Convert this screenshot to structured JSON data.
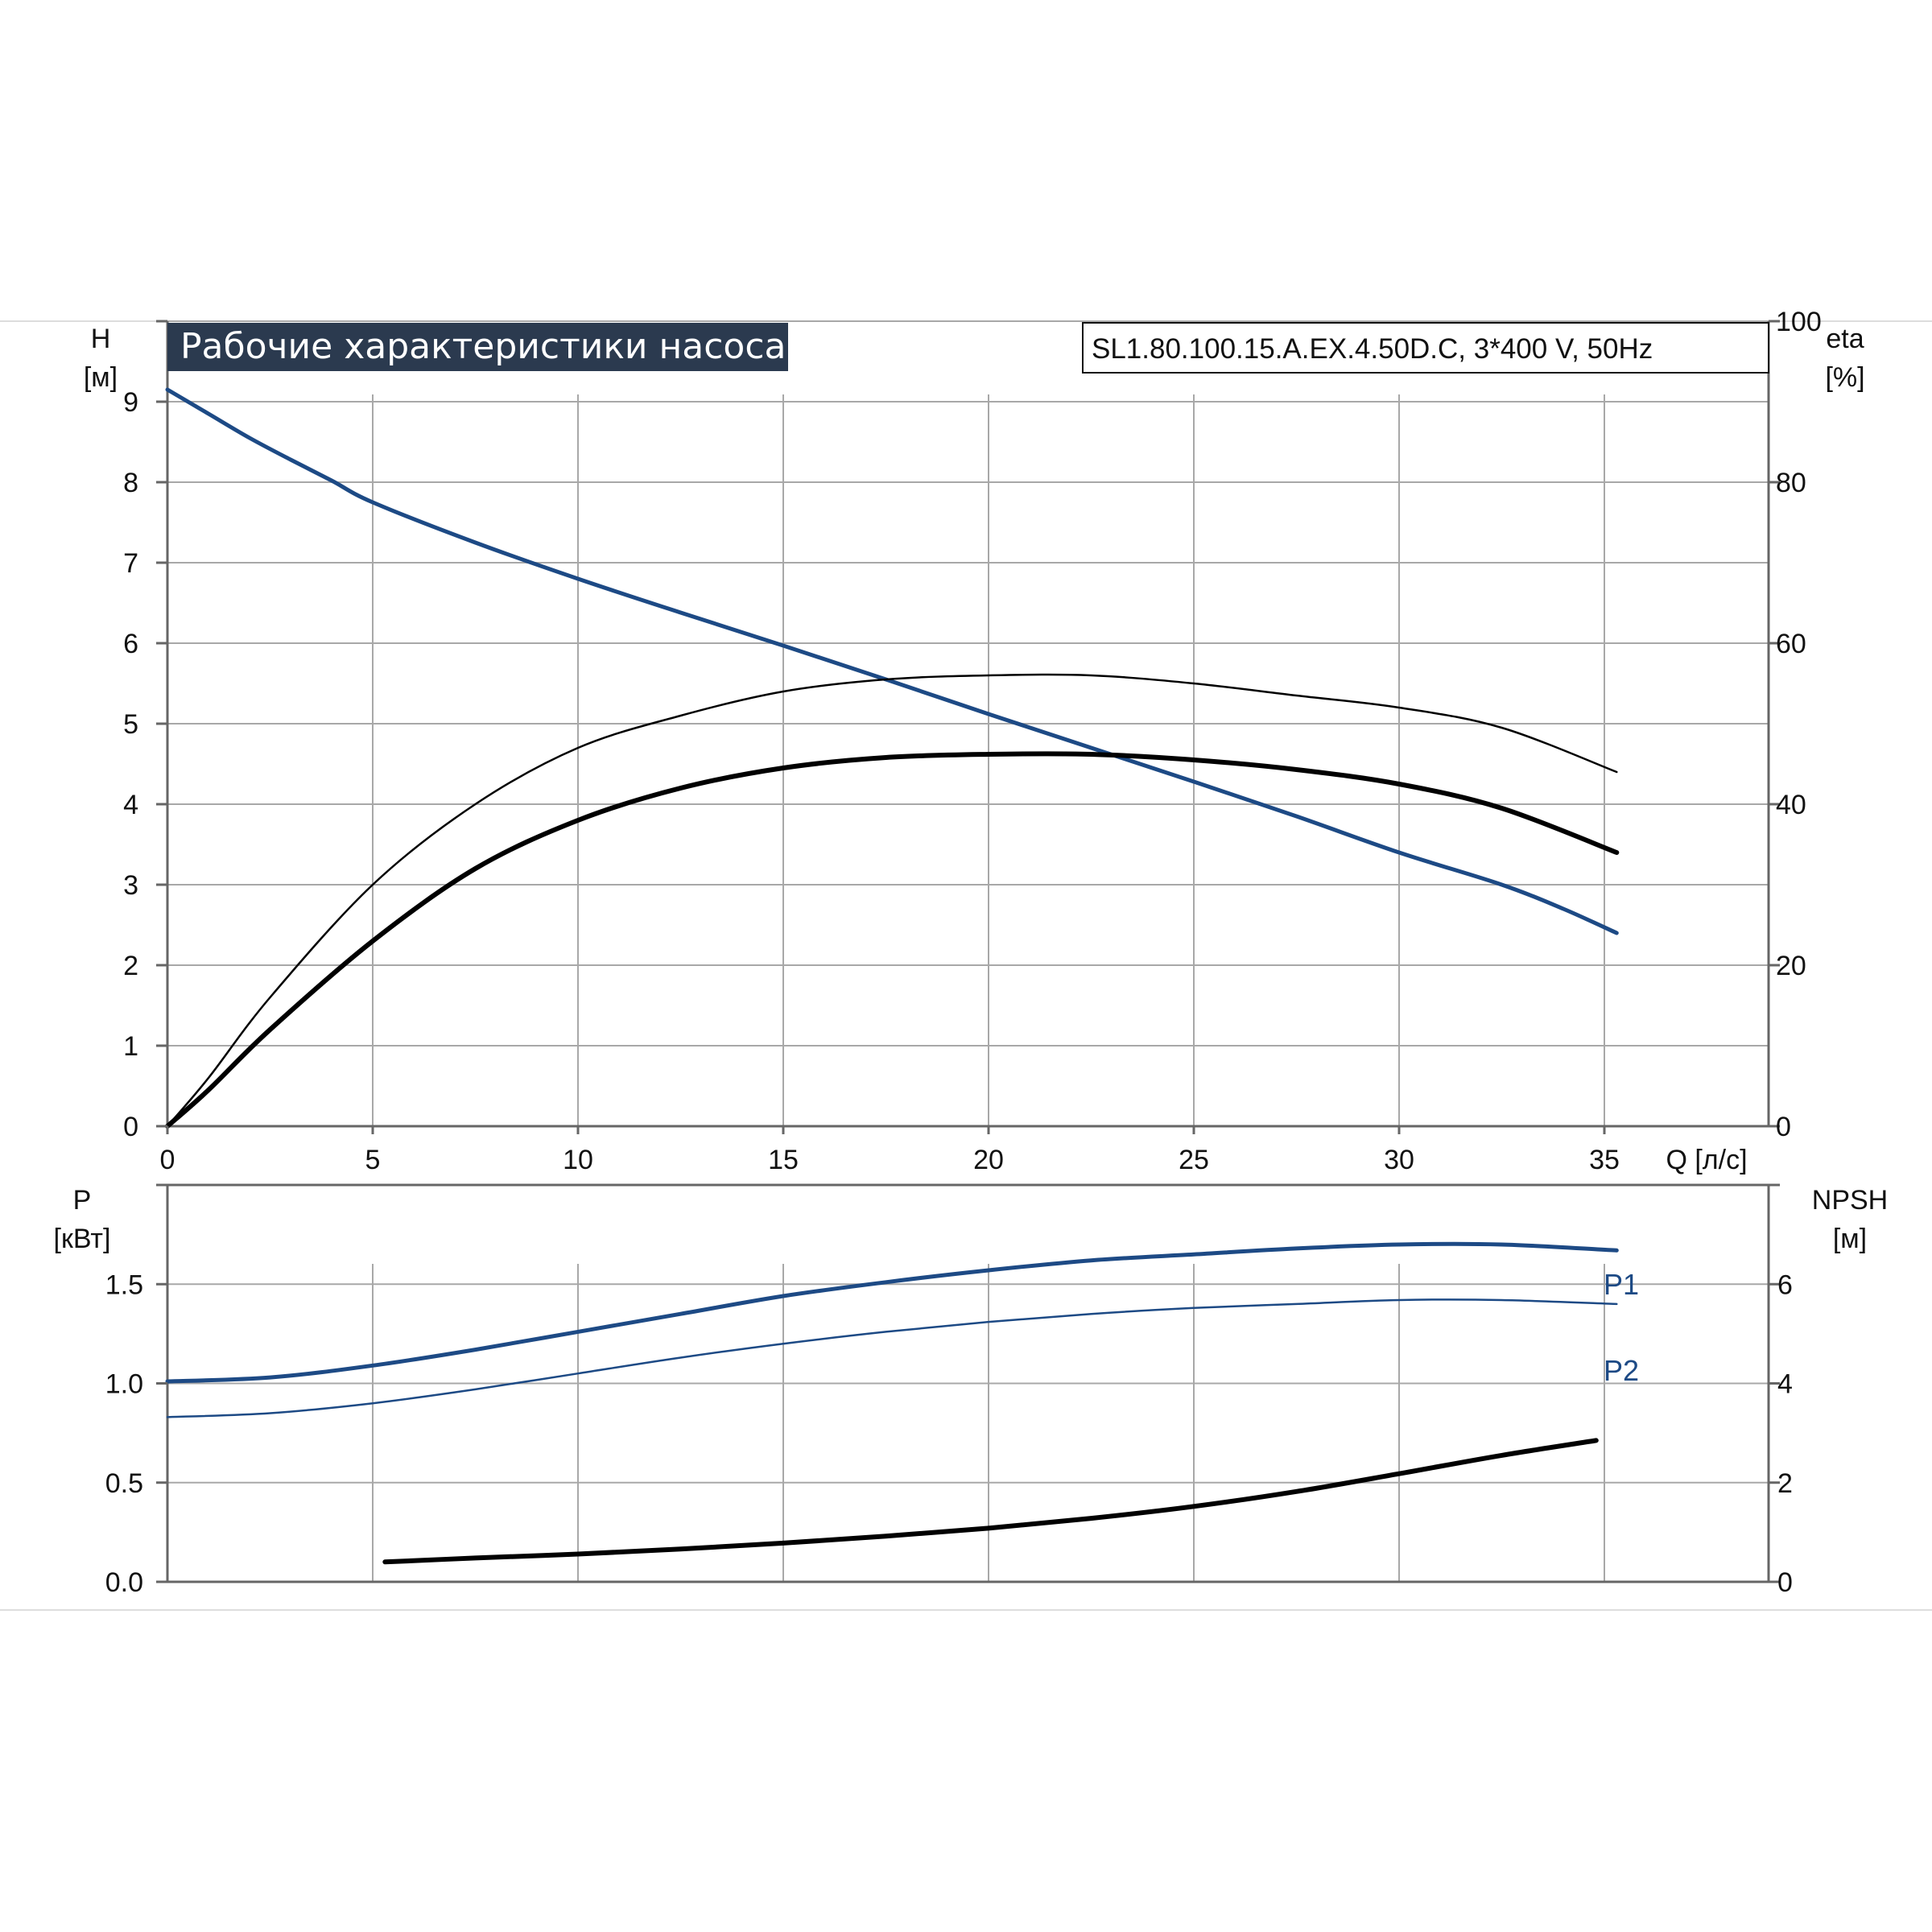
{
  "colors": {
    "curve_blue": "#1d4a85",
    "curve_black": "#000000",
    "grid": "#a8a8a8",
    "axis": "#666666",
    "title_bg": "#2b3a4f"
  },
  "header": {
    "title": "Рабочие характеристики насоса",
    "model": "SL1.80.100.15.A.EX.4.50D.C, 3*400 V, 50Hz"
  },
  "chart_data": [
    {
      "type": "line",
      "title": "Рабочие характеристики насоса",
      "xlabel": "Q [л/с]",
      "ylabel_left": "H",
      "ylabel_left_unit": "[м]",
      "ylabel_right": "eta",
      "ylabel_right_unit": "[%]",
      "xlim": [
        0,
        39
      ],
      "ylim_left": [
        0,
        10
      ],
      "ylim_right": [
        0,
        100
      ],
      "x_ticks": [
        "0",
        "5",
        "10",
        "15",
        "20",
        "25",
        "30",
        "35"
      ],
      "y_ticks_left": [
        "0",
        "1",
        "2",
        "3",
        "4",
        "5",
        "6",
        "7",
        "8",
        "9"
      ],
      "y_ticks_right": [
        "0",
        "20",
        "40",
        "60",
        "80",
        "100"
      ],
      "grid": true,
      "series": [
        {
          "axis": "left",
          "color": "blue",
          "width": 5,
          "points": [
            [
              0,
              9.15
            ],
            [
              1,
              8.85
            ],
            [
              2,
              8.55
            ],
            [
              3,
              8.28
            ],
            [
              4,
              8.02
            ],
            [
              5,
              7.75
            ],
            [
              7.5,
              7.25
            ],
            [
              10,
              6.8
            ],
            [
              12.5,
              6.38
            ],
            [
              15,
              5.97
            ],
            [
              17.5,
              5.55
            ],
            [
              20,
              5.12
            ],
            [
              22.5,
              4.7
            ],
            [
              25,
              4.28
            ],
            [
              27.5,
              3.85
            ],
            [
              30,
              3.4
            ],
            [
              32.5,
              3.0
            ],
            [
              34,
              2.7
            ],
            [
              35.3,
              2.4
            ]
          ]
        },
        {
          "axis": "right",
          "color": "black",
          "width": 2.5,
          "points": [
            [
              0,
              0
            ],
            [
              1,
              6
            ],
            [
              2.5,
              16
            ],
            [
              5,
              30
            ],
            [
              7.5,
              40
            ],
            [
              10,
              47
            ],
            [
              12.5,
              51
            ],
            [
              15,
              54
            ],
            [
              17.5,
              55.5
            ],
            [
              20,
              56
            ],
            [
              22.5,
              56
            ],
            [
              25,
              55
            ],
            [
              27.5,
              53.5
            ],
            [
              30,
              52
            ],
            [
              32.5,
              49.5
            ],
            [
              35.3,
              44
            ]
          ]
        },
        {
          "axis": "right",
          "color": "black",
          "width": 6,
          "points": [
            [
              0,
              0
            ],
            [
              1,
              4.5
            ],
            [
              2.5,
              12
            ],
            [
              5,
              23
            ],
            [
              7.5,
              32
            ],
            [
              10,
              38
            ],
            [
              12.5,
              42
            ],
            [
              15,
              44.5
            ],
            [
              17.5,
              45.8
            ],
            [
              20,
              46.2
            ],
            [
              22.5,
              46.2
            ],
            [
              25,
              45.5
            ],
            [
              27.5,
              44.3
            ],
            [
              30,
              42.5
            ],
            [
              32.5,
              39.5
            ],
            [
              35.3,
              34
            ]
          ]
        }
      ]
    },
    {
      "type": "line",
      "xlabel": "",
      "ylabel_left": "P",
      "ylabel_left_unit": "[кВт]",
      "ylabel_right": "NPSH",
      "ylabel_right_unit": "[м]",
      "xlim": [
        0,
        39
      ],
      "ylim_left": [
        0,
        2.0
      ],
      "ylim_right": [
        0,
        8
      ],
      "y_ticks_left": [
        "0.0",
        "0.5",
        "1.0",
        "1.5"
      ],
      "y_ticks_right": [
        "0",
        "2",
        "4",
        "6"
      ],
      "grid": true,
      "series": [
        {
          "name": "P1",
          "axis": "left",
          "color": "blue",
          "width": 5,
          "points": [
            [
              0,
              1.01
            ],
            [
              2.5,
              1.03
            ],
            [
              5,
              1.09
            ],
            [
              7.5,
              1.17
            ],
            [
              10,
              1.26
            ],
            [
              12.5,
              1.35
            ],
            [
              15,
              1.44
            ],
            [
              17.5,
              1.51
            ],
            [
              20,
              1.57
            ],
            [
              22.5,
              1.62
            ],
            [
              25,
              1.65
            ],
            [
              27.5,
              1.68
            ],
            [
              30,
              1.7
            ],
            [
              32.5,
              1.7
            ],
            [
              35.3,
              1.67
            ]
          ]
        },
        {
          "name": "P2",
          "axis": "left",
          "color": "blue",
          "width": 2.5,
          "points": [
            [
              0,
              0.83
            ],
            [
              2.5,
              0.85
            ],
            [
              5,
              0.9
            ],
            [
              7.5,
              0.97
            ],
            [
              10,
              1.05
            ],
            [
              12.5,
              1.13
            ],
            [
              15,
              1.2
            ],
            [
              17.5,
              1.26
            ],
            [
              20,
              1.31
            ],
            [
              22.5,
              1.35
            ],
            [
              25,
              1.38
            ],
            [
              27.5,
              1.4
            ],
            [
              30,
              1.42
            ],
            [
              32.5,
              1.42
            ],
            [
              35.3,
              1.4
            ]
          ]
        },
        {
          "axis": "right",
          "color": "black",
          "width": 6,
          "points": [
            [
              5.3,
              0.4
            ],
            [
              7.5,
              0.48
            ],
            [
              10,
              0.56
            ],
            [
              12.5,
              0.66
            ],
            [
              15,
              0.78
            ],
            [
              17.5,
              0.92
            ],
            [
              20,
              1.08
            ],
            [
              22.5,
              1.28
            ],
            [
              25,
              1.52
            ],
            [
              27.5,
              1.82
            ],
            [
              30,
              2.18
            ],
            [
              32.5,
              2.55
            ],
            [
              34.8,
              2.85
            ]
          ]
        }
      ]
    }
  ]
}
